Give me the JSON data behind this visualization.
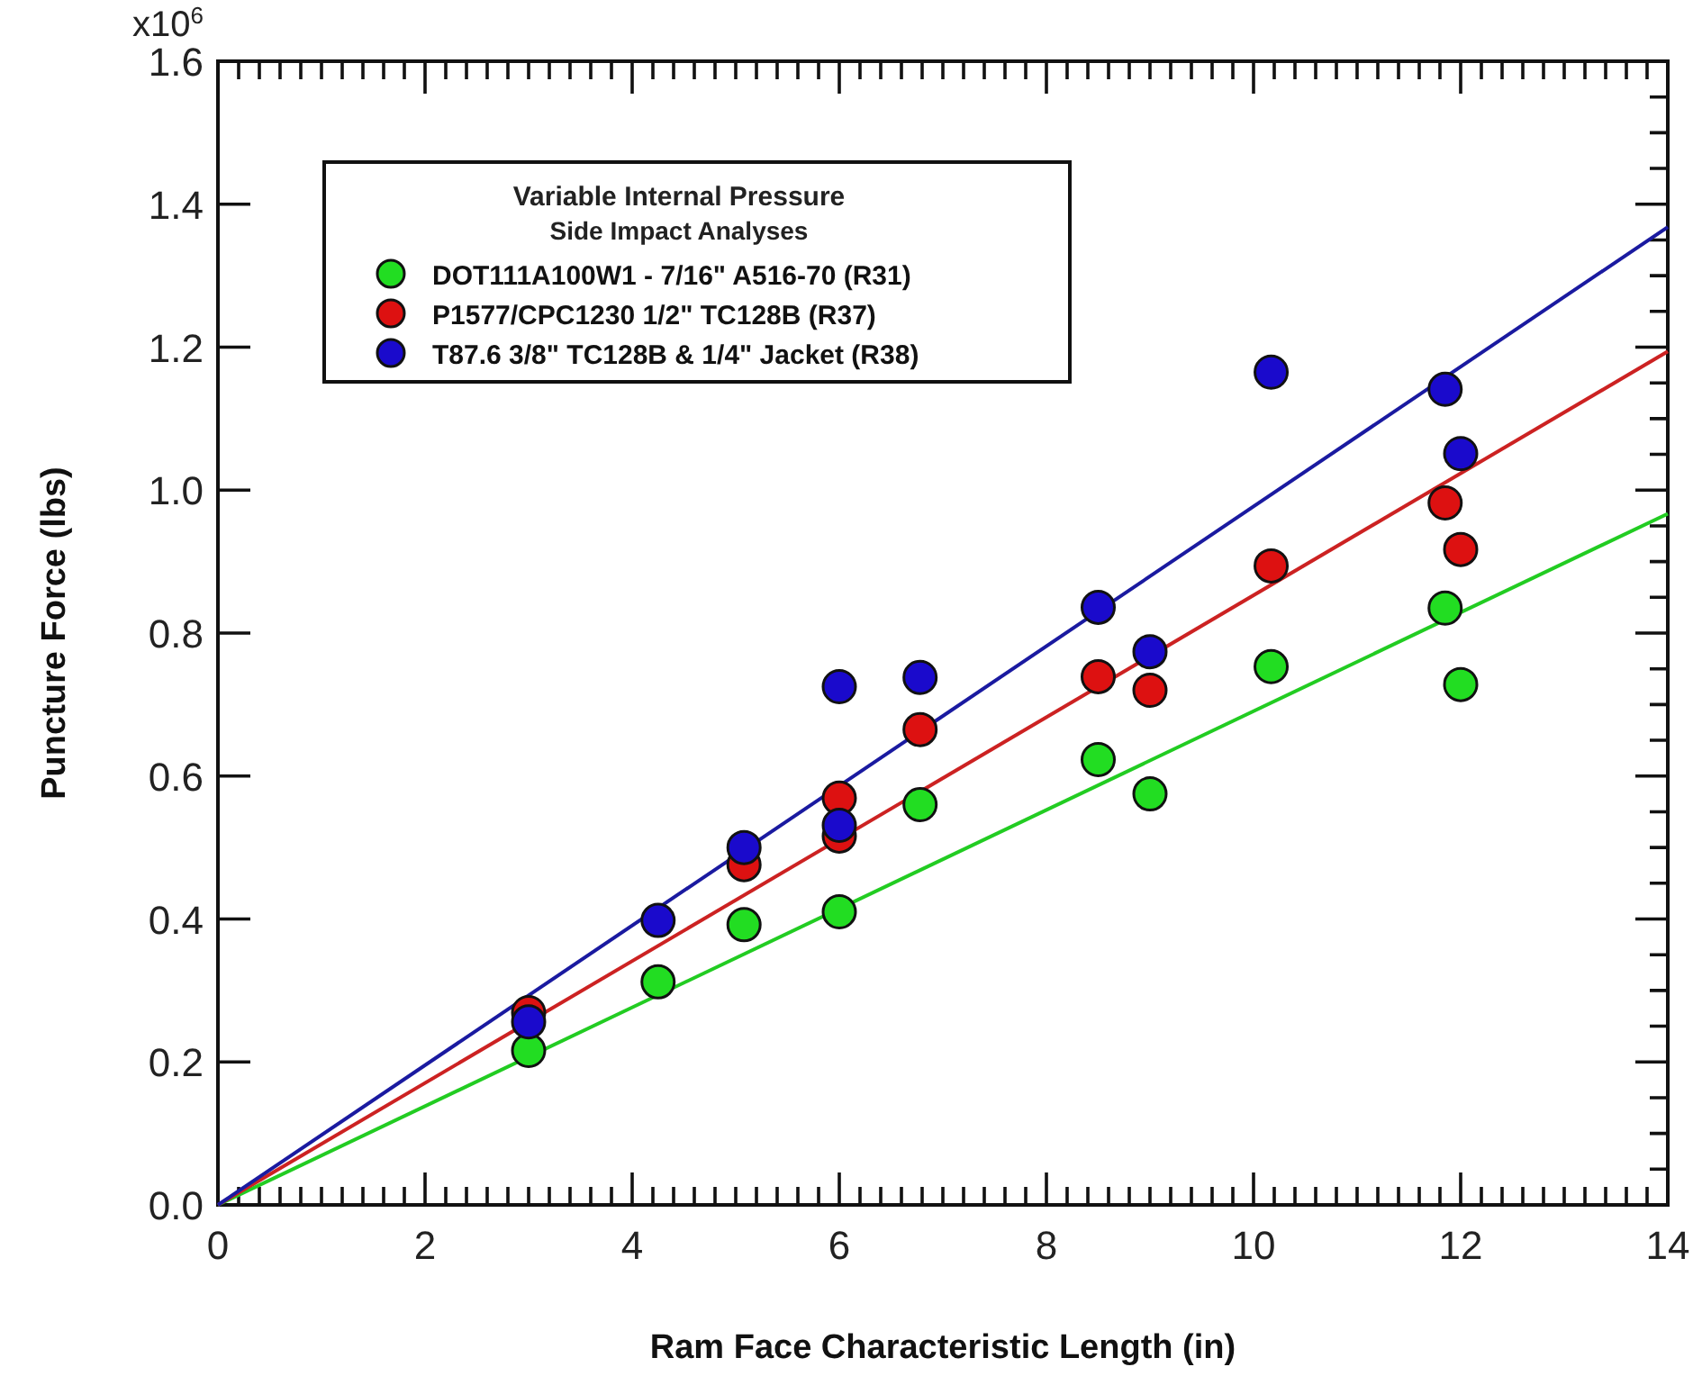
{
  "chart_data": {
    "type": "scatter",
    "xlabel": "Ram Face Characteristic Length  (in)",
    "ylabel": "Puncture Force (lbs)",
    "legend_title": "Variable Internal Pressure\nSide Impact Analyses",
    "legend": "top left",
    "marker": "circle",
    "grid": false,
    "xlim": [
      0,
      14
    ],
    "ylim": [
      0,
      1.6
    ],
    "xticks": [
      0,
      2,
      4,
      6,
      8,
      10,
      12,
      14
    ],
    "yticks": [
      {
        "value": 0,
        "label": "0.0"
      },
      0.2,
      0.4,
      0.6,
      0.8,
      {
        "value": 1,
        "label": "1.0"
      },
      1.2,
      1.4,
      1.6
    ],
    "annotations": [
      "x10$^{6}$"
    ],
    "series": [
      {
        "type": "line",
        "marker": "none",
        "color": "#22cc22",
        "x": [
          0,
          14
        ],
        "values": [
          0,
          0.967
        ]
      },
      {
        "type": "line",
        "marker": "none",
        "color": "#cc2222",
        "x": [
          0,
          14
        ],
        "values": [
          0,
          1.194
        ]
      },
      {
        "type": "line",
        "marker": "none",
        "color": "#1a1aa0",
        "x": [
          0,
          14
        ],
        "values": [
          0,
          1.368
        ]
      },
      {
        "name": "DOT111A100W1 - 7/16\" A516-70 (R31)",
        "color": "#22dd22",
        "x": [
          3,
          4.25,
          5.08,
          6,
          6.78,
          8.5,
          9,
          10.17,
          11.85,
          12
        ],
        "values": [
          0.216,
          0.312,
          0.392,
          0.41,
          0.56,
          0.623,
          0.575,
          0.753,
          0.835,
          0.728
        ]
      },
      {
        "name": "P1577/CPC1230 1/2\" TC128B (R37)",
        "color": "#dd1111",
        "x": [
          3,
          5.08,
          6,
          6,
          6.78,
          8.5,
          9,
          10.17,
          11.85,
          12
        ],
        "values": [
          0.269,
          0.476,
          0.569,
          0.516,
          0.665,
          0.739,
          0.72,
          0.894,
          0.982,
          0.917
        ]
      },
      {
        "name": "T87.6 3/8\" TC128B & 1/4\" Jacket (R38)",
        "color": "#1a0acc",
        "x": [
          3,
          4.25,
          5.08,
          6,
          6,
          6.78,
          8.5,
          9,
          10.17,
          11.85,
          12
        ],
        "values": [
          0.256,
          0.398,
          0.5,
          0.725,
          0.531,
          0.738,
          0.836,
          0.774,
          1.165,
          1.141,
          1.051
        ]
      }
    ]
  }
}
